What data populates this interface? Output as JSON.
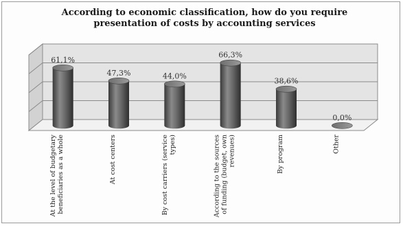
{
  "chart_data": {
    "type": "bar",
    "title": "According to economic classification, how do you require presentation of costs by accounting services",
    "categories": [
      "At the level of budgetary beneficiaries as a whole",
      "At cost centers",
      "By cost carriers (service types)",
      "According to the sources of funding (budget, own revenues)",
      "By program",
      "Other"
    ],
    "values": [
      61.1,
      47.3,
      44.0,
      66.3,
      38.6,
      0.0
    ],
    "value_labels": [
      "61,1%",
      "47,3%",
      "44,0%",
      "66,3%",
      "38,6%",
      "0,0%"
    ],
    "xlabel": "",
    "ylabel": "",
    "ylim": [
      0,
      80
    ],
    "grid": true,
    "legend": "none",
    "bar_color": "#5a5a5a",
    "wall_color": "#e4e4e4"
  }
}
